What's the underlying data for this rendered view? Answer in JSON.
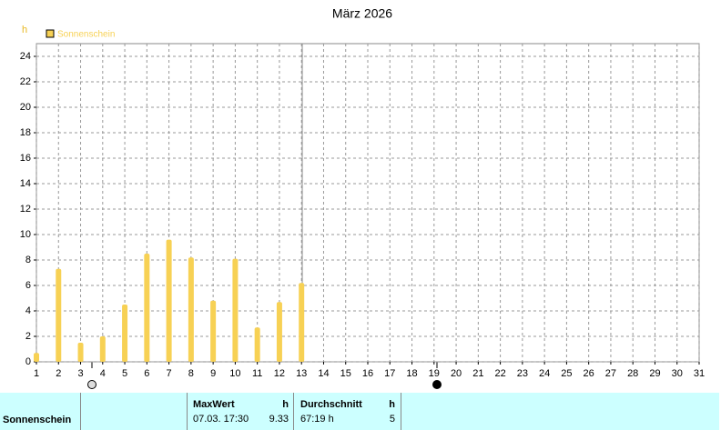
{
  "chart_data": {
    "type": "bar",
    "title": "März 2026",
    "y_label": "h",
    "x": [
      1,
      2,
      3,
      4,
      5,
      6,
      7,
      8,
      9,
      10,
      11,
      12,
      13
    ],
    "series": [
      {
        "name": "Sonnenschein",
        "color": "#f7d154",
        "values": [
          0.7,
          7.3,
          1.5,
          2.0,
          4.5,
          8.5,
          9.6,
          8.2,
          4.8,
          8.1,
          2.7,
          4.7,
          6.2
        ]
      }
    ],
    "xlim": [
      1,
      31
    ],
    "xticks": [
      1,
      2,
      3,
      4,
      5,
      6,
      7,
      8,
      9,
      10,
      11,
      12,
      13,
      14,
      15,
      16,
      17,
      18,
      19,
      20,
      21,
      22,
      23,
      24,
      25,
      26,
      27,
      28,
      29,
      30,
      31
    ],
    "ylim": [
      0,
      25
    ],
    "yticks": [
      0,
      2,
      4,
      6,
      8,
      10,
      12,
      14,
      16,
      18,
      20,
      22,
      24
    ],
    "grid": true,
    "legend": "upper left"
  },
  "table": {
    "row_label": "Sonnenschein",
    "max": {
      "header": "MaxWert",
      "unit": "h",
      "date": "07.03. 17:30",
      "value": "9.33"
    },
    "avg": {
      "header": "Durchschnitt",
      "unit": "h",
      "value": "67:19 h",
      "count": "5"
    }
  }
}
